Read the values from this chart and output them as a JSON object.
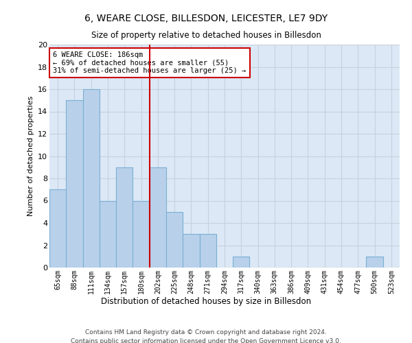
{
  "title": "6, WEARE CLOSE, BILLESDON, LEICESTER, LE7 9DY",
  "subtitle": "Size of property relative to detached houses in Billesdon",
  "xlabel": "Distribution of detached houses by size in Billesdon",
  "ylabel": "Number of detached properties",
  "categories": [
    "65sqm",
    "88sqm",
    "111sqm",
    "134sqm",
    "157sqm",
    "180sqm",
    "202sqm",
    "225sqm",
    "248sqm",
    "271sqm",
    "294sqm",
    "317sqm",
    "340sqm",
    "363sqm",
    "386sqm",
    "409sqm",
    "431sqm",
    "454sqm",
    "477sqm",
    "500sqm",
    "523sqm"
  ],
  "values": [
    7,
    15,
    16,
    6,
    9,
    6,
    9,
    5,
    3,
    3,
    0,
    1,
    0,
    0,
    0,
    0,
    0,
    0,
    0,
    1,
    0
  ],
  "bar_color": "#b8d0ea",
  "bar_edge_color": "#7aafd4",
  "grid_color": "#c8d0e0",
  "bg_color": "#dce8f5",
  "vline_color": "#cc0000",
  "annotation_text": "6 WEARE CLOSE: 186sqm\n← 69% of detached houses are smaller (55)\n31% of semi-detached houses are larger (25) →",
  "annotation_box_color": "#cc0000",
  "ylim": [
    0,
    20
  ],
  "yticks": [
    0,
    2,
    4,
    6,
    8,
    10,
    12,
    14,
    16,
    18,
    20
  ],
  "footer_line1": "Contains HM Land Registry data © Crown copyright and database right 2024.",
  "footer_line2": "Contains public sector information licensed under the Open Government Licence v3.0."
}
